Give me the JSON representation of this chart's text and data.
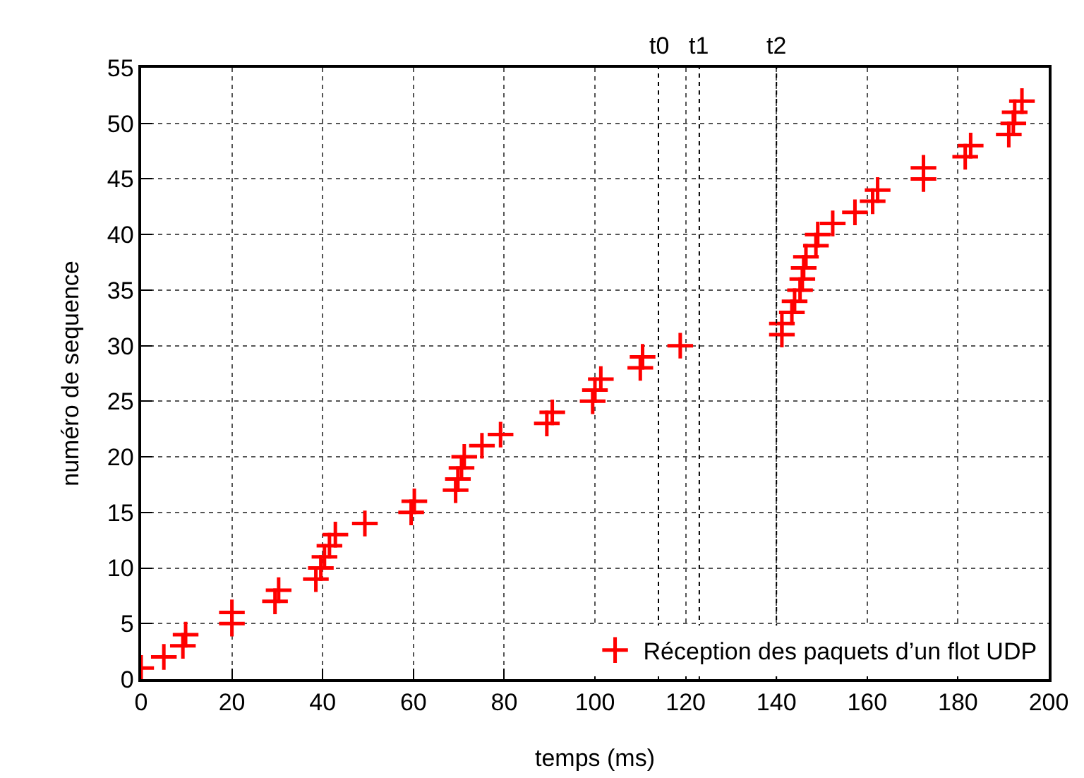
{
  "chart_data": {
    "type": "scatter",
    "xlabel": "temps (ms)",
    "ylabel": "numéro de sequence",
    "xlim": [
      0,
      200
    ],
    "xticks": [
      0,
      20,
      40,
      60,
      80,
      100,
      120,
      140,
      160,
      180,
      200
    ],
    "ylim": [
      0,
      55
    ],
    "yticks": [
      0,
      5,
      10,
      15,
      20,
      25,
      30,
      35,
      40,
      45,
      50,
      55
    ],
    "ref_lines": [
      {
        "axis": "x",
        "value": 114,
        "label": "t0",
        "line_style": "dotted"
      },
      {
        "axis": "x",
        "value": 123,
        "label": "t1",
        "line_style": "dotted"
      },
      {
        "axis": "x",
        "value": 140,
        "label": "t2",
        "line_style": "dotted"
      }
    ],
    "grid": true,
    "legend": "bottom right",
    "marker": "cross",
    "series": [
      {
        "name": "Réception des paquets d’un flot UDP",
        "color": "#ff0000",
        "x": [
          0,
          5,
          9.2,
          9.8,
          20,
          20,
          29.5,
          30.3,
          38.5,
          39.6,
          40.4,
          41.5,
          42.8,
          49.3,
          59.5,
          60.2,
          69.3,
          69.8,
          70.6,
          71.2,
          75.1,
          79.2,
          89.4,
          90.6,
          99.5,
          100,
          101.3,
          110,
          110.5,
          118.8,
          141.2,
          141.2,
          143.4,
          144,
          145.2,
          145.7,
          146,
          146.5,
          148.7,
          149.1,
          152.4,
          157.3,
          161.2,
          162.3,
          172.4,
          172.4,
          181.6,
          182.8,
          191.2,
          192.2,
          192.5,
          194.1
        ],
        "values": [
          1,
          2,
          3,
          4,
          5,
          6,
          7,
          8,
          9,
          10,
          11,
          12,
          13,
          14,
          15,
          16,
          17,
          18,
          19,
          20,
          21,
          22,
          23,
          24,
          25,
          26,
          27,
          28,
          29,
          30,
          31,
          32,
          33,
          34,
          35,
          36,
          37,
          38,
          39,
          40,
          41,
          42,
          43,
          44,
          45,
          46,
          47,
          48,
          49,
          50,
          51,
          52
        ]
      }
    ]
  }
}
